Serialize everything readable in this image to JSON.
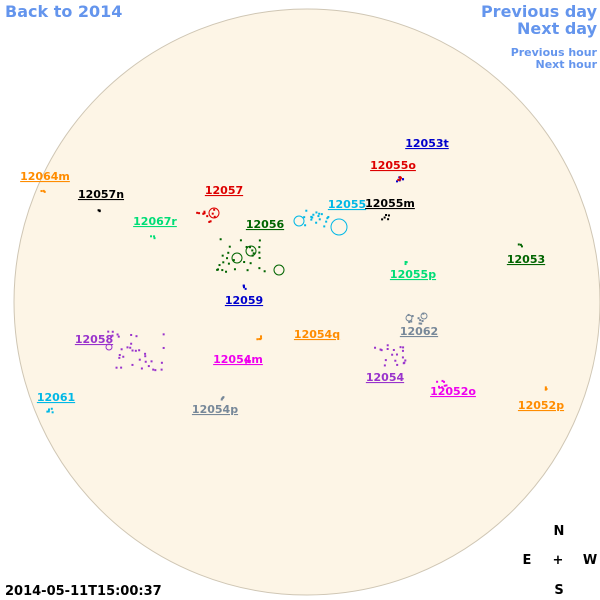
{
  "nav": {
    "back": "Back to 2014",
    "previous_day": "Previous day",
    "next_day": "Next day",
    "previous_hour": "Previous hour",
    "next_hour": "Next hour"
  },
  "regions": [
    {
      "label": "12053t",
      "color": "#0000cc"
    },
    {
      "label": "12055o",
      "color": "#dd0000"
    },
    {
      "label": "12064m",
      "color": "#ff8c00"
    },
    {
      "label": "12057n",
      "color": "#000000"
    },
    {
      "label": "12057",
      "color": "#dd0000"
    },
    {
      "label": "12055",
      "color": "#00b8e6"
    },
    {
      "label": "12055m",
      "color": "#000000"
    },
    {
      "label": "12067r",
      "color": "#00dd77"
    },
    {
      "label": "12056",
      "color": "#006400"
    },
    {
      "label": "12053",
      "color": "#006400"
    },
    {
      "label": "12055p",
      "color": "#00dd77"
    },
    {
      "label": "12059",
      "color": "#0000cc"
    },
    {
      "label": "12054q",
      "color": "#ff8c00"
    },
    {
      "label": "12062",
      "color": "#778899"
    },
    {
      "label": "12058",
      "color": "#9933cc"
    },
    {
      "label": "12054m",
      "color": "#ee00ee"
    },
    {
      "label": "12054",
      "color": "#9933cc"
    },
    {
      "label": "12052o",
      "color": "#ee00ee"
    },
    {
      "label": "12061",
      "color": "#00b8e6"
    },
    {
      "label": "12054p",
      "color": "#778899"
    },
    {
      "label": "12052p",
      "color": "#ff8c00"
    }
  ],
  "compass": {
    "north": "N",
    "east": "E",
    "center": "+",
    "west": "W",
    "south": "S"
  },
  "timestamp": "2014-05-11T15:00:37"
}
